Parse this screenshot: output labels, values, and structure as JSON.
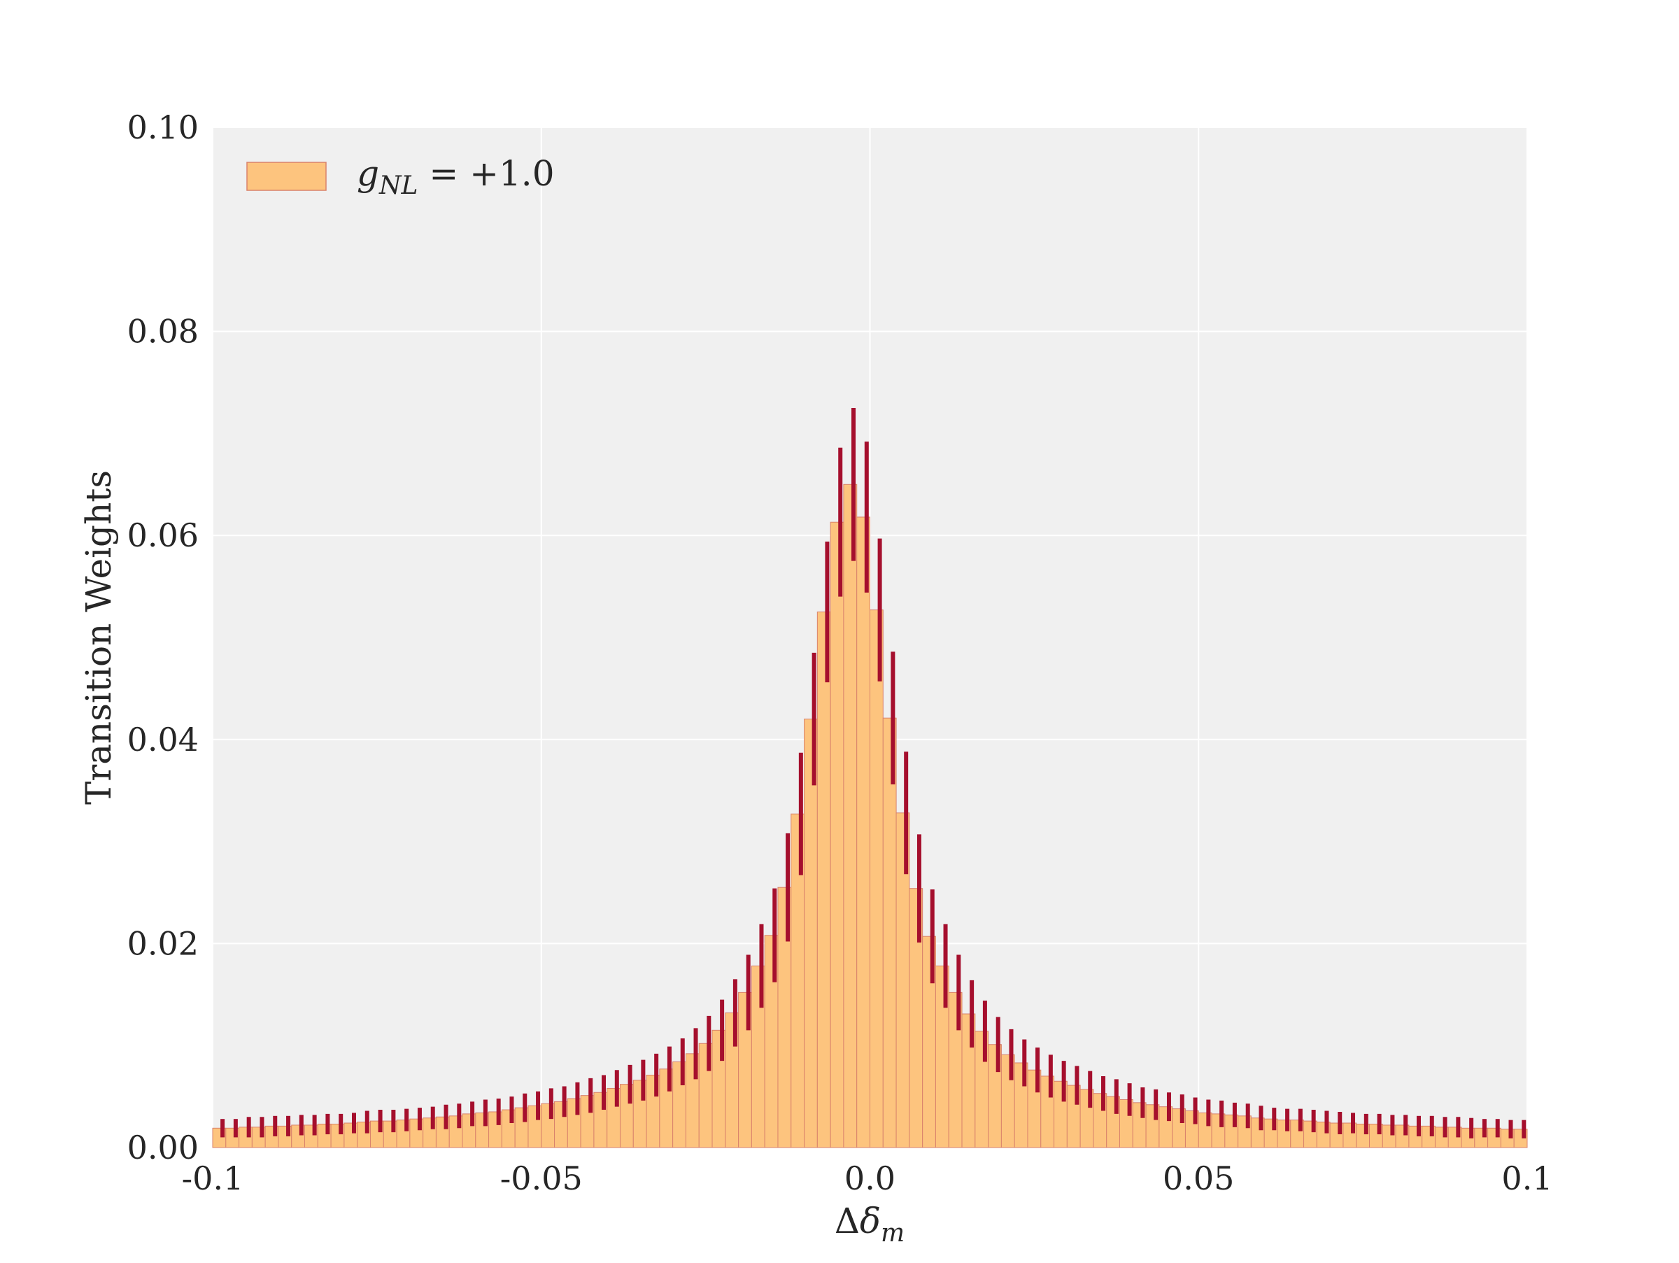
{
  "chart_data": {
    "type": "bar",
    "xlabel": "Δδ_m",
    "ylabel": "Transition Weights",
    "xlim": [
      -0.1,
      0.1
    ],
    "ylim": [
      0.0,
      0.1
    ],
    "x_ticks": [
      -0.1,
      -0.05,
      0.0,
      0.05,
      0.1
    ],
    "x_tick_labels": [
      "-0.1",
      "-0.05",
      "0.0",
      "0.05",
      "0.1"
    ],
    "y_ticks": [
      0.0,
      0.02,
      0.04,
      0.06,
      0.08,
      0.1
    ],
    "y_tick_labels": [
      "0.00",
      "0.02",
      "0.04",
      "0.06",
      "0.08",
      "0.10"
    ],
    "grid": true,
    "legend_position": "top-left",
    "bin_width": 0.002,
    "colors": {
      "bar_fill": "#fdc47e",
      "bar_edge": "#d9826b",
      "error_bar": "#a50f2d",
      "plot_bg": "#f0f0f0",
      "grid": "#ffffff"
    },
    "series": [
      {
        "name": "g_NL = +1.0",
        "legend_main": "g",
        "legend_sub": "NL",
        "legend_rest": " = +1.0",
        "bin_centers": [
          -0.099,
          -0.097,
          -0.095,
          -0.093,
          -0.091,
          -0.089,
          -0.087,
          -0.085,
          -0.083,
          -0.081,
          -0.079,
          -0.077,
          -0.075,
          -0.073,
          -0.071,
          -0.069,
          -0.067,
          -0.065,
          -0.063,
          -0.061,
          -0.059,
          -0.057,
          -0.055,
          -0.053,
          -0.051,
          -0.049,
          -0.047,
          -0.045,
          -0.043,
          -0.041,
          -0.039,
          -0.037,
          -0.035,
          -0.033,
          -0.031,
          -0.029,
          -0.027,
          -0.025,
          -0.023,
          -0.021,
          -0.019,
          -0.017,
          -0.015,
          -0.013,
          -0.011,
          -0.009,
          -0.007,
          -0.005,
          -0.003,
          -0.001,
          0.001,
          0.003,
          0.005,
          0.007,
          0.009,
          0.011,
          0.013,
          0.015,
          0.017,
          0.019,
          0.021,
          0.023,
          0.025,
          0.027,
          0.029,
          0.031,
          0.033,
          0.035,
          0.037,
          0.039,
          0.041,
          0.043,
          0.045,
          0.047,
          0.049,
          0.051,
          0.053,
          0.055,
          0.057,
          0.059,
          0.061,
          0.063,
          0.065,
          0.067,
          0.069,
          0.071,
          0.073,
          0.075,
          0.077,
          0.079,
          0.081,
          0.083,
          0.085,
          0.087,
          0.089,
          0.091,
          0.093,
          0.095,
          0.097,
          0.099
        ],
        "values": [
          0.0019,
          0.0019,
          0.002,
          0.002,
          0.0021,
          0.0021,
          0.0022,
          0.0022,
          0.0023,
          0.0023,
          0.0024,
          0.0025,
          0.0026,
          0.0026,
          0.0027,
          0.0028,
          0.0029,
          0.003,
          0.0031,
          0.0033,
          0.0034,
          0.0035,
          0.0037,
          0.0039,
          0.0041,
          0.0043,
          0.0045,
          0.0048,
          0.0051,
          0.0054,
          0.0058,
          0.0062,
          0.0066,
          0.0071,
          0.0077,
          0.0084,
          0.0092,
          0.0102,
          0.0115,
          0.0132,
          0.0152,
          0.0178,
          0.0208,
          0.0255,
          0.0327,
          0.042,
          0.0525,
          0.0613,
          0.065,
          0.0618,
          0.0527,
          0.0421,
          0.0328,
          0.0254,
          0.0207,
          0.0178,
          0.0152,
          0.0131,
          0.0114,
          0.0101,
          0.0091,
          0.0083,
          0.0076,
          0.007,
          0.0065,
          0.0061,
          0.0057,
          0.0053,
          0.005,
          0.0047,
          0.0044,
          0.0042,
          0.004,
          0.0038,
          0.0036,
          0.0034,
          0.0033,
          0.0032,
          0.0031,
          0.0029,
          0.0028,
          0.0027,
          0.0027,
          0.0026,
          0.0025,
          0.0024,
          0.0024,
          0.0023,
          0.0023,
          0.0022,
          0.0022,
          0.0021,
          0.0021,
          0.002,
          0.002,
          0.0019,
          0.0019,
          0.0019,
          0.0018,
          0.0018
        ],
        "error_x": [
          -0.0985,
          -0.0965,
          -0.0945,
          -0.0925,
          -0.0905,
          -0.0885,
          -0.0865,
          -0.0845,
          -0.0825,
          -0.0805,
          -0.0785,
          -0.0765,
          -0.0745,
          -0.0725,
          -0.0705,
          -0.0685,
          -0.0665,
          -0.0645,
          -0.0625,
          -0.0605,
          -0.0585,
          -0.0565,
          -0.0545,
          -0.0525,
          -0.0505,
          -0.0485,
          -0.0465,
          -0.0445,
          -0.0425,
          -0.0405,
          -0.0385,
          -0.0365,
          -0.0345,
          -0.0325,
          -0.0305,
          -0.0285,
          -0.0265,
          -0.0245,
          -0.0225,
          -0.0205,
          -0.0185,
          -0.0165,
          -0.0145,
          -0.0125,
          -0.0105,
          -0.0085,
          -0.0065,
          -0.0045,
          -0.0025,
          -0.0005,
          0.0015,
          0.0035,
          0.0055,
          0.0075,
          0.0095,
          0.0115,
          0.0135,
          0.0155,
          0.0175,
          0.0195,
          0.0215,
          0.0235,
          0.0255,
          0.0275,
          0.0295,
          0.0315,
          0.0335,
          0.0355,
          0.0375,
          0.0395,
          0.0415,
          0.0435,
          0.0455,
          0.0475,
          0.0495,
          0.0515,
          0.0535,
          0.0555,
          0.0575,
          0.0595,
          0.0615,
          0.0635,
          0.0655,
          0.0675,
          0.0695,
          0.0715,
          0.0735,
          0.0755,
          0.0775,
          0.0795,
          0.0815,
          0.0835,
          0.0855,
          0.0875,
          0.0895,
          0.0915,
          0.0935,
          0.0955,
          0.0975,
          0.0995
        ],
        "error_center": [
          0.0019,
          0.0019,
          0.002,
          0.002,
          0.0021,
          0.0021,
          0.0022,
          0.0022,
          0.0023,
          0.0023,
          0.0024,
          0.0025,
          0.0026,
          0.0026,
          0.0027,
          0.0028,
          0.0029,
          0.003,
          0.0031,
          0.0033,
          0.0034,
          0.0035,
          0.0037,
          0.0039,
          0.0041,
          0.0043,
          0.0045,
          0.0048,
          0.0051,
          0.0054,
          0.0058,
          0.0062,
          0.0066,
          0.0071,
          0.0077,
          0.0084,
          0.0092,
          0.0102,
          0.0115,
          0.0132,
          0.0152,
          0.0178,
          0.0208,
          0.0255,
          0.0327,
          0.042,
          0.0525,
          0.0613,
          0.065,
          0.0618,
          0.0527,
          0.0421,
          0.0328,
          0.0254,
          0.0207,
          0.0178,
          0.0152,
          0.0131,
          0.0114,
          0.0101,
          0.0091,
          0.0083,
          0.0076,
          0.007,
          0.0065,
          0.0061,
          0.0057,
          0.0053,
          0.005,
          0.0047,
          0.0044,
          0.0042,
          0.004,
          0.0038,
          0.0036,
          0.0034,
          0.0033,
          0.0032,
          0.0031,
          0.0029,
          0.0028,
          0.0027,
          0.0027,
          0.0026,
          0.0025,
          0.0024,
          0.0024,
          0.0023,
          0.0023,
          0.0022,
          0.0022,
          0.0021,
          0.0021,
          0.002,
          0.002,
          0.0019,
          0.0019,
          0.0019,
          0.0018,
          0.0018
        ],
        "error_halfwidth": [
          0.0009,
          0.0009,
          0.001,
          0.001,
          0.001,
          0.001,
          0.001,
          0.001,
          0.001,
          0.001,
          0.001,
          0.0011,
          0.0011,
          0.0011,
          0.0011,
          0.0011,
          0.0011,
          0.0012,
          0.0012,
          0.0012,
          0.0013,
          0.0013,
          0.0013,
          0.0014,
          0.0014,
          0.0015,
          0.0015,
          0.0016,
          0.0017,
          0.0017,
          0.0018,
          0.0019,
          0.002,
          0.0021,
          0.0022,
          0.0023,
          0.0025,
          0.0027,
          0.003,
          0.0033,
          0.0037,
          0.0041,
          0.0046,
          0.0053,
          0.006,
          0.0065,
          0.0069,
          0.0073,
          0.0075,
          0.0074,
          0.007,
          0.0065,
          0.006,
          0.0053,
          0.0046,
          0.0041,
          0.0037,
          0.0033,
          0.003,
          0.0027,
          0.0025,
          0.0023,
          0.0022,
          0.0021,
          0.002,
          0.0019,
          0.0018,
          0.0017,
          0.0017,
          0.0016,
          0.0015,
          0.0015,
          0.0014,
          0.0014,
          0.0013,
          0.0013,
          0.0013,
          0.0012,
          0.0012,
          0.0012,
          0.0011,
          0.0011,
          0.0011,
          0.0011,
          0.0011,
          0.0011,
          0.001,
          0.001,
          0.001,
          0.001,
          0.001,
          0.001,
          0.001,
          0.001,
          0.001,
          0.001,
          0.0009,
          0.0009,
          0.0009,
          0.0009
        ]
      }
    ]
  }
}
